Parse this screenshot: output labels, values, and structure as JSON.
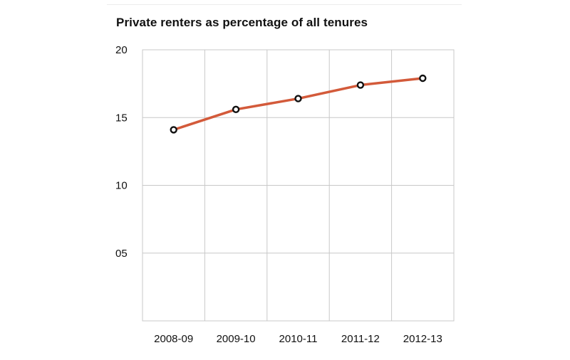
{
  "chart_data": {
    "type": "line",
    "title": "Private renters as percentage of all tenures",
    "xlabel": "",
    "ylabel": "",
    "categories": [
      "2008-09",
      "2009-10",
      "2010-11",
      "2011-12",
      "2012-13"
    ],
    "y_tick_labels": [
      "20",
      "15",
      "10",
      "05"
    ],
    "y_tick_values": [
      20,
      15,
      10,
      5
    ],
    "ylim": [
      0,
      20
    ],
    "grid": true,
    "series": [
      {
        "values": [
          14.1,
          15.6,
          16.4,
          17.4,
          17.9
        ],
        "color": "#d35a3a"
      }
    ],
    "marker_fill": "#ffffff",
    "marker_stroke": "#111111",
    "grid_color": "#c8c8c8"
  }
}
